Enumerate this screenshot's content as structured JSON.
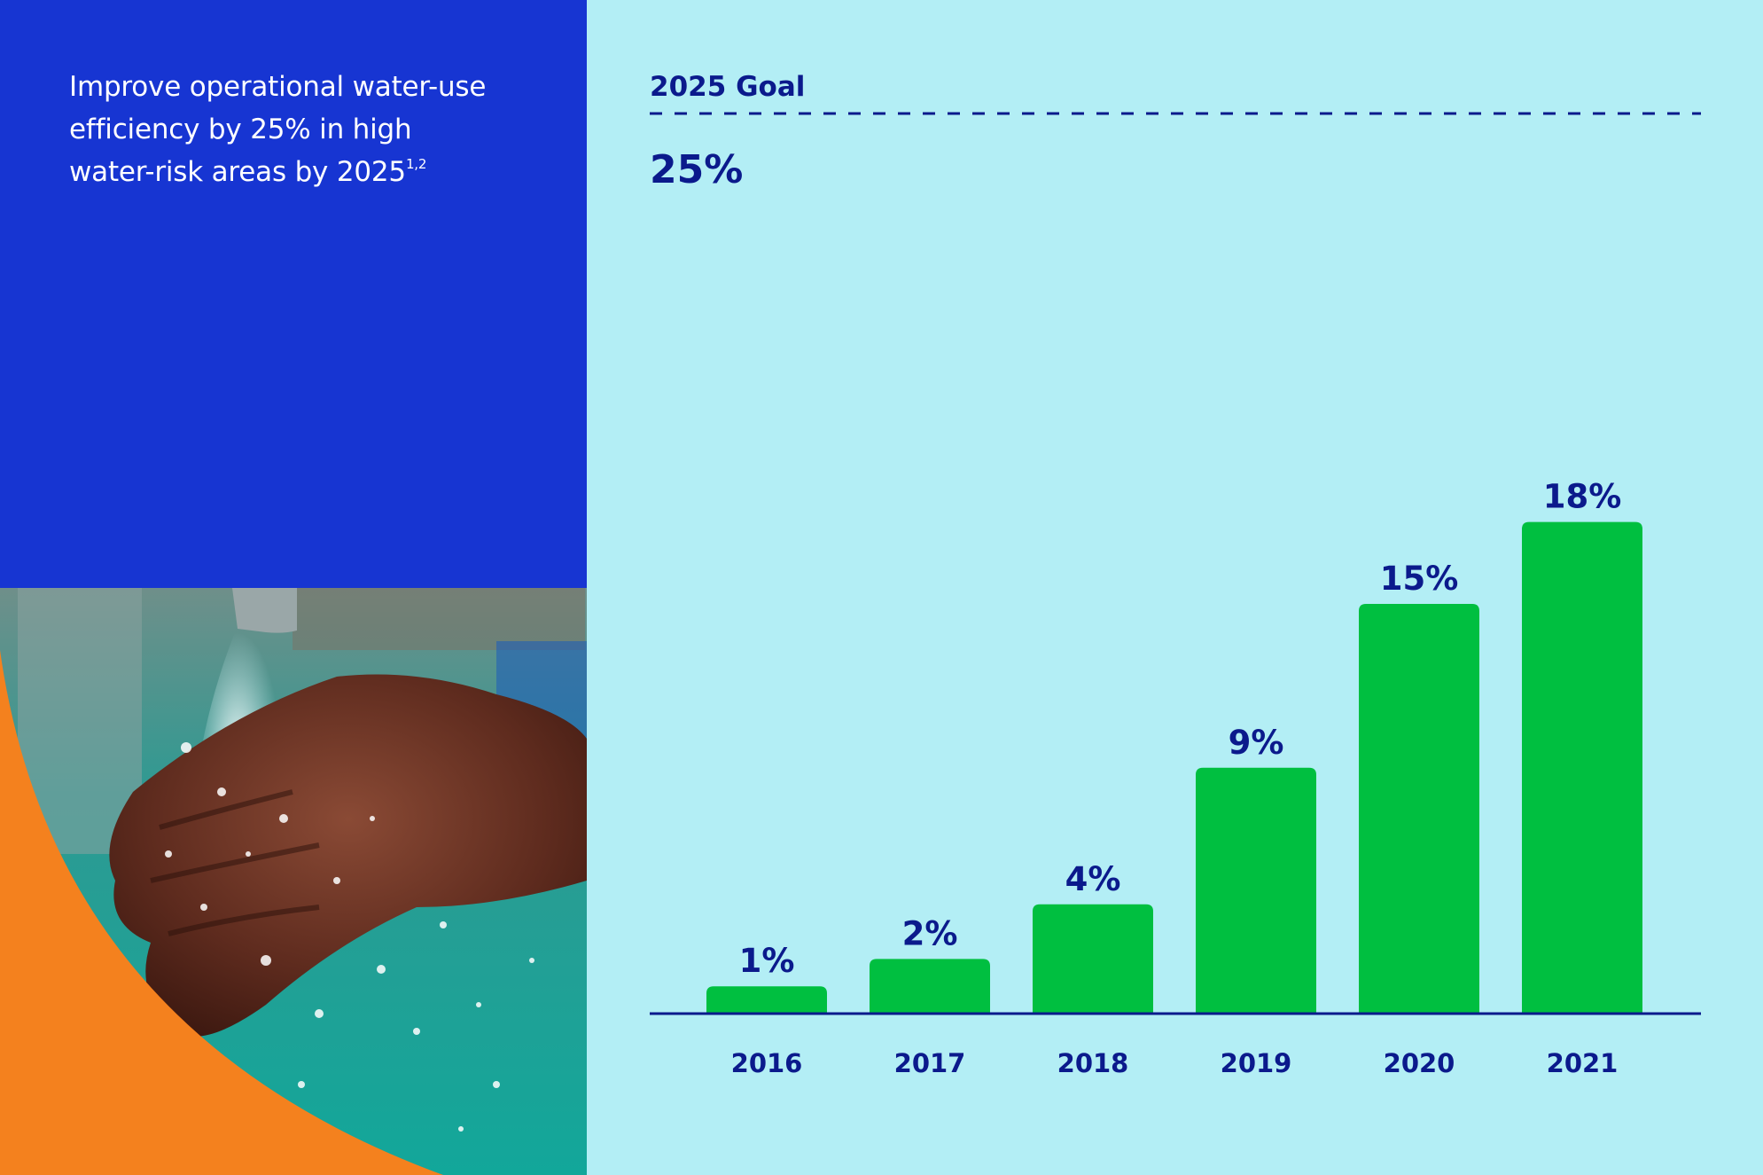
{
  "goal_statement": {
    "text": "Improve operational water-use efficiency by 25% in high water-risk areas by 2025",
    "line1": "Improve operational water-use",
    "line2": "efficiency by 25% in high",
    "line3": "water-risk areas by 2025",
    "footnotes": "1,2"
  },
  "colors": {
    "left_panel": "#1735D2",
    "chart_background": "#B3EEF5",
    "bar": "#00BF40",
    "navy": "#0B1A8C",
    "orange": "#F4811E"
  },
  "chart_data": {
    "type": "bar",
    "categories": [
      "2016",
      "2017",
      "2018",
      "2019",
      "2020",
      "2021"
    ],
    "values": [
      1,
      2,
      4,
      9,
      15,
      18
    ],
    "data_labels": [
      "1%",
      "2%",
      "4%",
      "9%",
      "15%",
      "18%"
    ],
    "unit": "%",
    "ylim": [
      0,
      25
    ],
    "grid": false,
    "target": {
      "label": "2025 Goal",
      "value": 25,
      "value_label": "25%",
      "style": "dashed"
    }
  }
}
